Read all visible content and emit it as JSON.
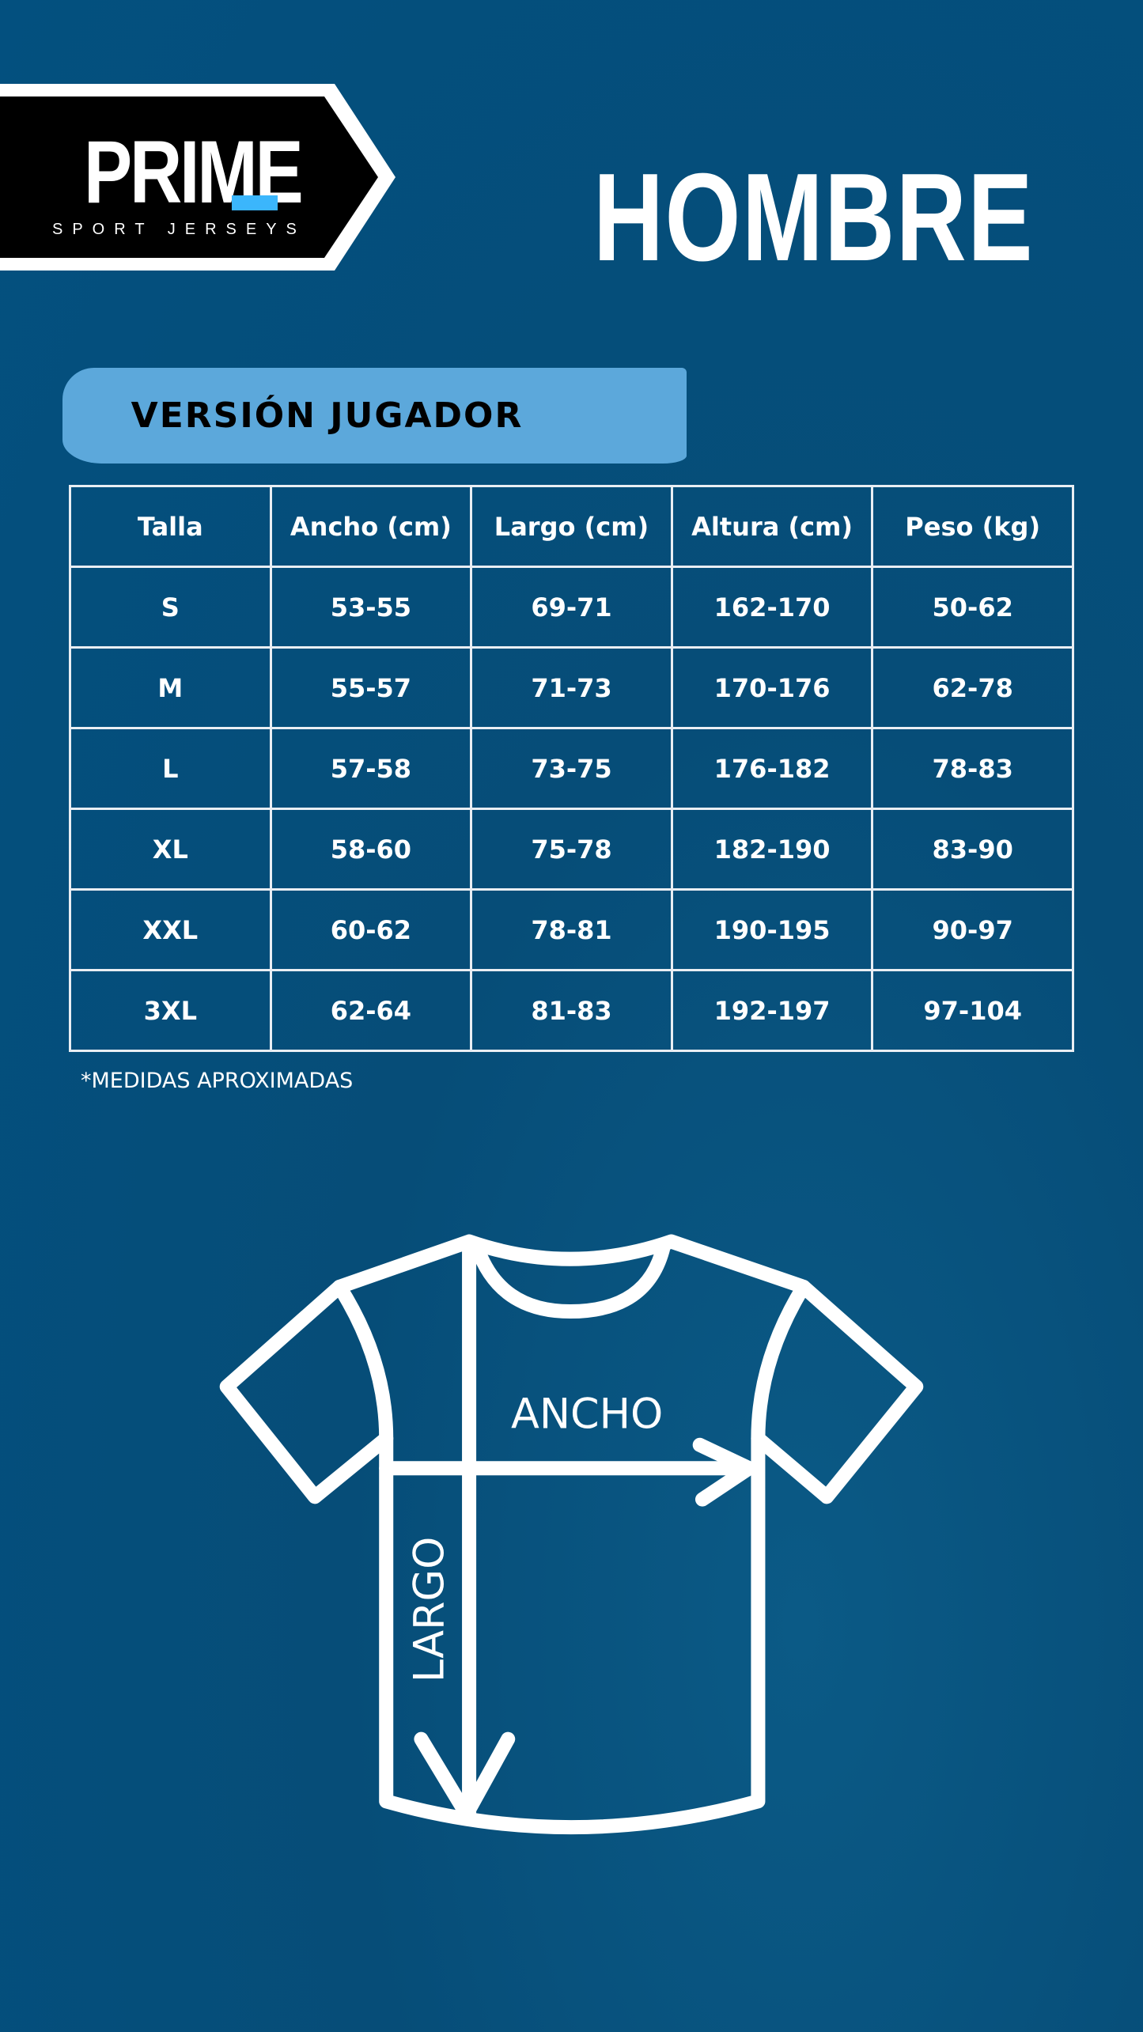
{
  "logo": {
    "word": "PRIME",
    "subtitle": "SPORT JERSEYS",
    "accent_color": "#3bb6fc"
  },
  "title": "HOMBRE",
  "banner": {
    "label": "VERSIÓN JUGADOR",
    "color": "#5ca8db"
  },
  "table": {
    "headers": [
      "Talla",
      "Ancho (cm)",
      "Largo (cm)",
      "Altura (cm)",
      "Peso (kg)"
    ],
    "rows": [
      [
        "S",
        "53-55",
        "69-71",
        "162-170",
        "50-62"
      ],
      [
        "M",
        "55-57",
        "71-73",
        "170-176",
        "62-78"
      ],
      [
        "L",
        "57-58",
        "73-75",
        "176-182",
        "78-83"
      ],
      [
        "XL",
        "58-60",
        "75-78",
        "182-190",
        "83-90"
      ],
      [
        "XXL",
        "60-62",
        "78-81",
        "190-195",
        "90-97"
      ],
      [
        "3XL",
        "62-64",
        "81-83",
        "192-197",
        "97-104"
      ]
    ]
  },
  "note": "*MEDIDAS APROXIMADAS",
  "diagram": {
    "width_label": "ANCHO",
    "length_label": "LARGO"
  },
  "background_color": "#03507f"
}
